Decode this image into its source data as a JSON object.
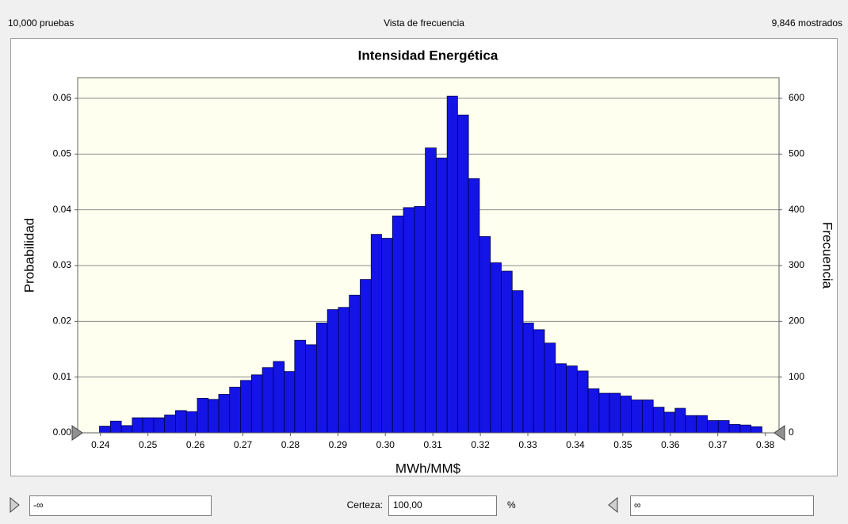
{
  "header": {
    "trials": "10,000 pruebas",
    "view": "Vista de frecuencia",
    "shown": "9,846 mostrados"
  },
  "chart_data": {
    "type": "histogram",
    "title": "Intensidad Energética",
    "x_label": "MWh/MM$",
    "y_label": "Probabilidad",
    "y2_label": "Frecuencia",
    "color": "#1414e6",
    "bins": [
      0.2398,
      0.2421,
      0.2444,
      0.2467,
      0.2489,
      0.2512,
      0.2535,
      0.2558,
      0.2581,
      0.2604,
      0.2627,
      0.2649,
      0.2672,
      0.2695,
      0.2718,
      0.2741,
      0.2764,
      0.2787,
      0.2809,
      0.2832,
      0.2855,
      0.2878,
      0.2901,
      0.2924,
      0.2947,
      0.297,
      0.2992,
      0.3015,
      0.3038,
      0.3061,
      0.3084,
      0.3107,
      0.313,
      0.3152,
      0.3175,
      0.3198,
      0.3221,
      0.3244,
      0.3267,
      0.329,
      0.3312,
      0.3335,
      0.3358,
      0.3381,
      0.3404,
      0.3427,
      0.345,
      0.3472,
      0.3495,
      0.3518,
      0.3541,
      0.3564,
      0.3587,
      0.361,
      0.3632,
      0.3655,
      0.3678,
      0.3701,
      0.3724,
      0.3747,
      0.377,
      0.3793
    ],
    "values": [
      0.0012,
      0.0021,
      0.0013,
      0.0027,
      0.0027,
      0.0027,
      0.0032,
      0.004,
      0.0038,
      0.0062,
      0.006,
      0.0069,
      0.0082,
      0.0094,
      0.0104,
      0.0117,
      0.0128,
      0.011,
      0.0166,
      0.0158,
      0.0197,
      0.0221,
      0.0225,
      0.0247,
      0.0275,
      0.0356,
      0.0349,
      0.0389,
      0.0404,
      0.0406,
      0.0511,
      0.0493,
      0.0604,
      0.057,
      0.0456,
      0.0352,
      0.0305,
      0.029,
      0.0255,
      0.0197,
      0.0185,
      0.0161,
      0.0124,
      0.012,
      0.0111,
      0.0079,
      0.0071,
      0.0071,
      0.0066,
      0.0059,
      0.0059,
      0.0046,
      0.0037,
      0.0044,
      0.0031,
      0.0031,
      0.0022,
      0.0022,
      0.0015,
      0.0014,
      0.0011
    ],
    "xlim": [
      0.2352,
      0.3829
    ],
    "xticks": [
      0.24,
      0.25,
      0.26,
      0.27,
      0.28,
      0.29,
      {
        "value": 0.3,
        "label": "0.30"
      },
      0.31,
      0.32,
      0.33,
      0.34,
      0.35,
      0.36,
      0.37,
      0.38
    ],
    "ylim": [
      0,
      0.0637
    ],
    "yticks": [
      {
        "value": 0,
        "label": "0.00"
      },
      0.01,
      0.02,
      0.03,
      0.04,
      0.05,
      0.06
    ],
    "y2lim": [
      0,
      637
    ],
    "y2ticks": [
      0,
      100,
      200,
      300,
      400,
      500,
      600
    ],
    "grid": true
  },
  "certainty": {
    "left_bound": "-∞",
    "label": "Certeza:",
    "value": "100,00",
    "unit": "%",
    "right_bound": "∞"
  }
}
